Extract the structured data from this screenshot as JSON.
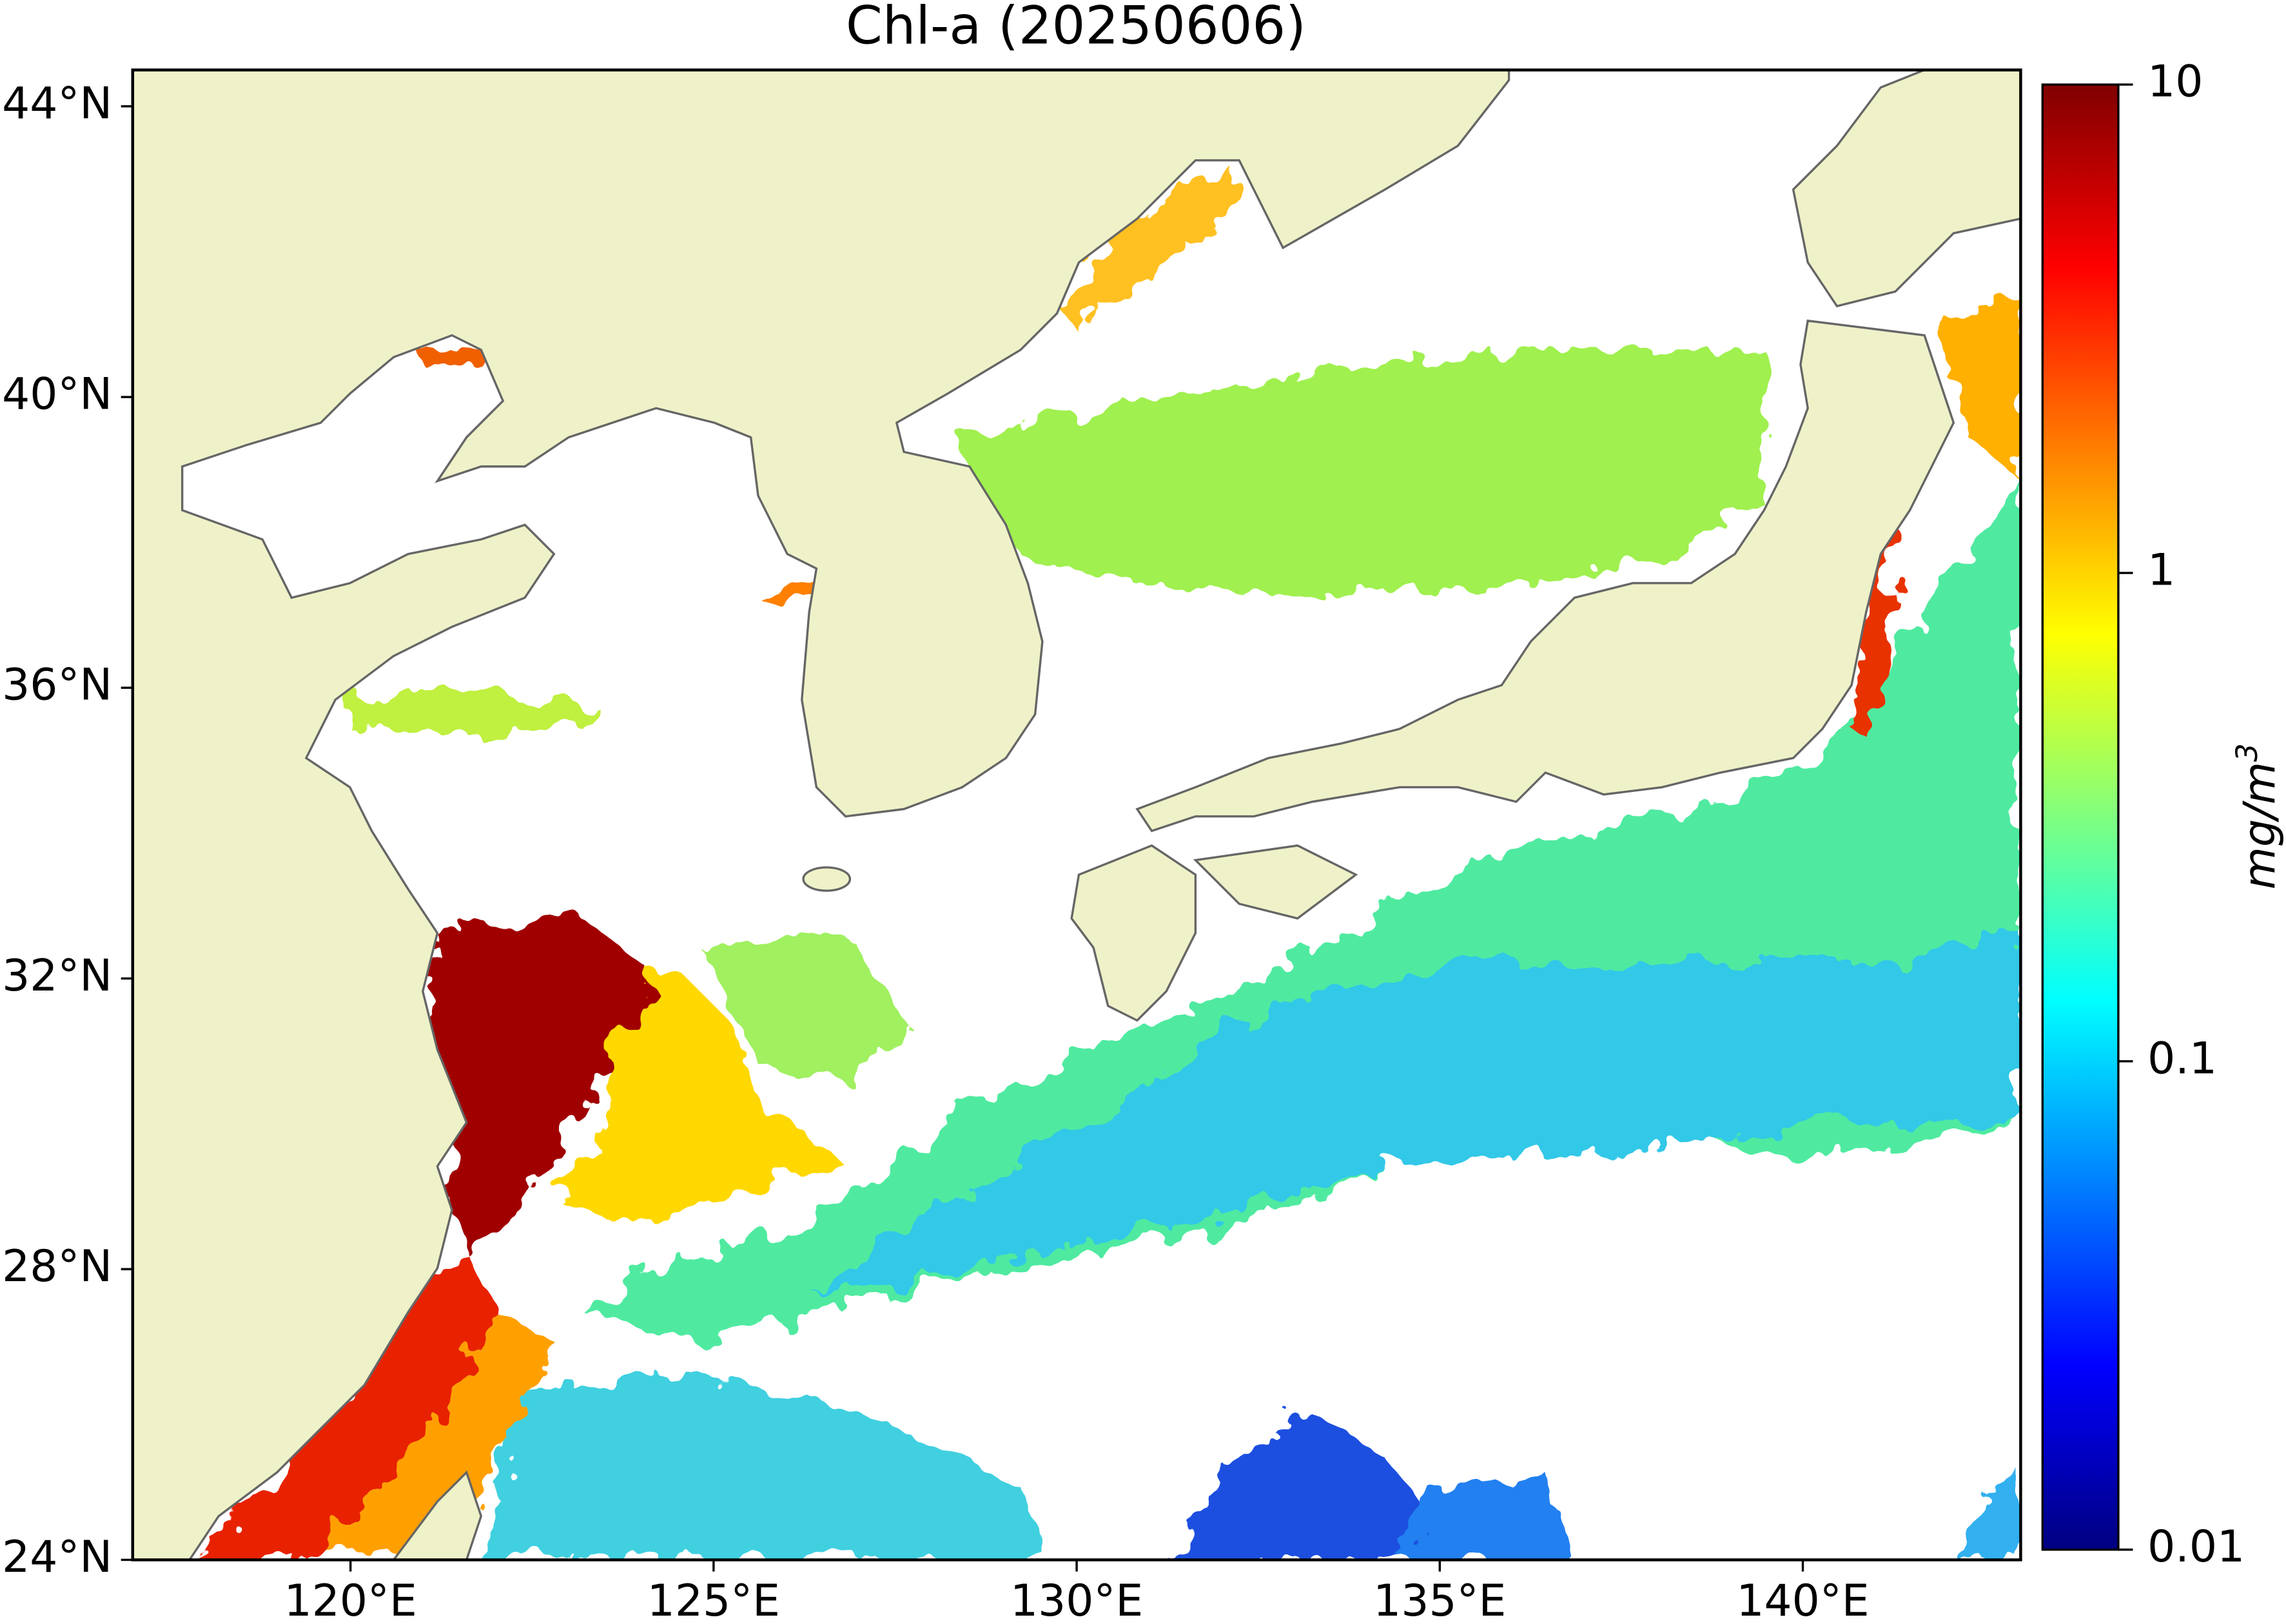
{
  "title": "Chl-a (20250606)",
  "map": {
    "xlim": [
      117,
      143
    ],
    "ylim": [
      24,
      44.5
    ],
    "xticks": [
      {
        "value": 120,
        "label": "120°E"
      },
      {
        "value": 125,
        "label": "125°E"
      },
      {
        "value": 130,
        "label": "130°E"
      },
      {
        "value": 135,
        "label": "135°E"
      },
      {
        "value": 140,
        "label": "140°E"
      }
    ],
    "yticks": [
      {
        "value": 24,
        "label": "24°N"
      },
      {
        "value": 28,
        "label": "28°N"
      },
      {
        "value": 32,
        "label": "32°N"
      },
      {
        "value": 36,
        "label": "36°N"
      },
      {
        "value": 40,
        "label": "40°N"
      },
      {
        "value": 44,
        "label": "44°N"
      }
    ]
  },
  "colorbar": {
    "log": true,
    "lim": [
      0.01,
      10
    ],
    "ticks": [
      0.01,
      0.1,
      1,
      10
    ],
    "label": "mg/m",
    "label_superscript": "3"
  }
}
